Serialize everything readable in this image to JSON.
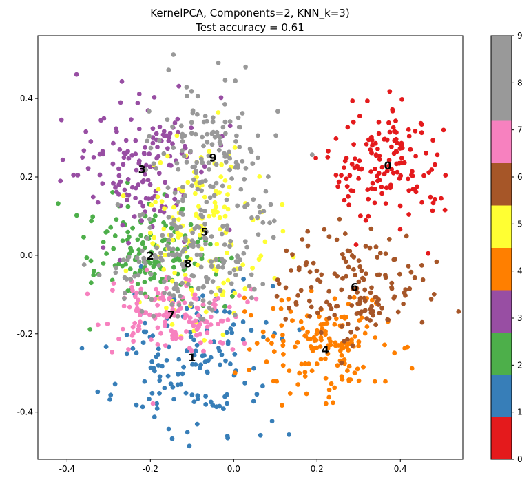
{
  "chart_data": {
    "type": "scatter",
    "title_line1": "KernelPCA, Components=2, KNN_k=3)",
    "title_line2": "Test accuracy = 0.61",
    "xlim": [
      -0.47,
      0.55
    ],
    "ylim": [
      -0.52,
      0.56
    ],
    "xticks": [
      "-0.4",
      "-0.2",
      "0.0",
      "0.2",
      "0.4"
    ],
    "yticks": [
      "-0.4",
      "-0.2",
      "0.0",
      "0.2",
      "0.4"
    ],
    "colorbar": {
      "ticks": [
        "0",
        "1",
        "2",
        "3",
        "4",
        "5",
        "6",
        "7",
        "8",
        "9"
      ],
      "colors": [
        "#e41a1c",
        "#377eb8",
        "#4daf4a",
        "#984ea3",
        "#ff7f00",
        "#ffff33",
        "#a65628",
        "#f781bf",
        "#999999",
        "#999999"
      ]
    },
    "class_colors": [
      "#e41a1c",
      "#377eb8",
      "#4daf4a",
      "#984ea3",
      "#ff7f00",
      "#ffff33",
      "#a65628",
      "#f781bf",
      "#999999",
      "#999999"
    ],
    "clusters": [
      {
        "label": "0",
        "center": [
          0.37,
          0.23
        ],
        "spread": [
          0.07,
          0.08
        ],
        "count": 150
      },
      {
        "label": "1",
        "center": [
          -0.1,
          -0.26
        ],
        "spread": [
          0.09,
          0.1
        ],
        "count": 150
      },
      {
        "label": "2",
        "center": [
          -0.2,
          0.0
        ],
        "spread": [
          0.08,
          0.07
        ],
        "count": 150
      },
      {
        "label": "3",
        "center": [
          -0.22,
          0.22
        ],
        "spread": [
          0.08,
          0.09
        ],
        "count": 150
      },
      {
        "label": "4",
        "center": [
          0.22,
          -0.24
        ],
        "spread": [
          0.09,
          0.07
        ],
        "count": 150
      },
      {
        "label": "5",
        "center": [
          -0.07,
          0.06
        ],
        "spread": [
          0.08,
          0.12
        ],
        "count": 150
      },
      {
        "label": "6",
        "center": [
          0.29,
          -0.08
        ],
        "spread": [
          0.09,
          0.08
        ],
        "count": 150
      },
      {
        "label": "7",
        "center": [
          -0.15,
          -0.15
        ],
        "spread": [
          0.08,
          0.05
        ],
        "count": 150
      },
      {
        "label": "8",
        "center": [
          -0.11,
          -0.02
        ],
        "spread": [
          0.09,
          0.07
        ],
        "count": 150
      },
      {
        "label": "9",
        "center": [
          -0.05,
          0.25
        ],
        "spread": [
          0.08,
          0.11
        ],
        "count": 150
      }
    ],
    "grid": false,
    "legend": "colorbar-right"
  }
}
